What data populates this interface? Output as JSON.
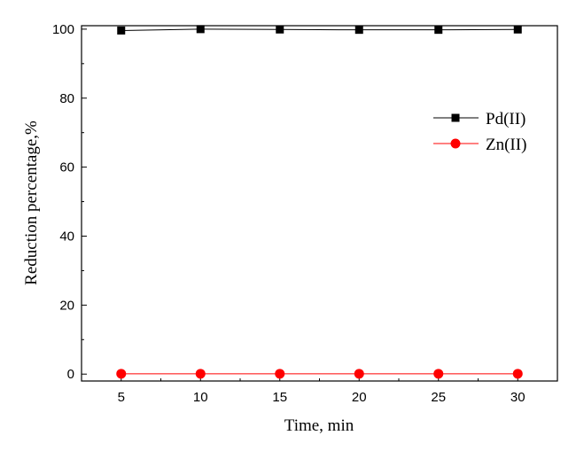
{
  "chart_data": {
    "type": "line",
    "xlabel": "Time, min",
    "ylabel": "Reduction percentage,%",
    "x": [
      5,
      10,
      15,
      20,
      25,
      30
    ],
    "x_ticks": [
      "5",
      "10",
      "15",
      "20",
      "25",
      "30"
    ],
    "y_ticks": [
      "0",
      "20",
      "40",
      "60",
      "80",
      "100"
    ],
    "xlim": [
      2.5,
      32.5
    ],
    "ylim": [
      -2,
      101
    ],
    "grid": false,
    "legend_position": "right-upper",
    "series": [
      {
        "name": "Pd(II)",
        "color": "#000000",
        "marker": "square",
        "values": [
          99.6,
          100.0,
          99.9,
          99.8,
          99.8,
          99.9
        ]
      },
      {
        "name": "Zn(II)",
        "color": "#ff0000",
        "marker": "circle",
        "values": [
          0.1,
          0.1,
          0.1,
          0.1,
          0.1,
          0.1
        ]
      }
    ]
  }
}
